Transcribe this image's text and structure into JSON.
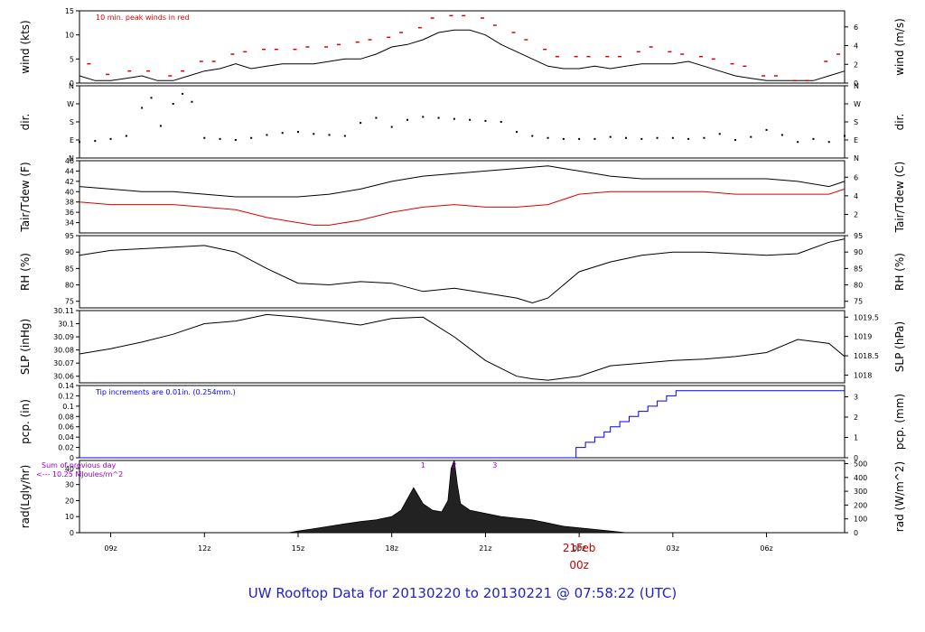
{
  "figure": {
    "title": "UW Rooftop Data for 20130220  to  20130221 @ 07:58:22  (UTC)",
    "colors": {
      "black": "#000000",
      "red": "#dd0000",
      "blue": "#0000ff",
      "purple": "#9900cc",
      "title": "#2222cc"
    }
  },
  "x_axis": {
    "tick_labels": [
      "09z",
      "12z",
      "15z",
      "18z",
      "21z",
      "00z",
      "03z",
      "06z"
    ],
    "tick_hours": [
      1.0,
      4.0,
      7.0,
      10.0,
      13.0,
      16.0,
      19.0,
      22.0
    ],
    "date_label": "21Feb",
    "date_label_time": "00z",
    "xlim_hours": [
      0,
      24.5
    ]
  },
  "chart_data": [
    {
      "type": "line",
      "id": "wind",
      "ylabel": "wind (kts)",
      "ylabel_right": "wind (m/s)",
      "ylim": [
        0,
        15
      ],
      "yticks": [
        0,
        5,
        10,
        15
      ],
      "right_ylim": [
        0,
        7.72
      ],
      "right_yticks": [
        0,
        2,
        4,
        6
      ],
      "annotation": "10 min. peak winds in red",
      "series": [
        {
          "role": "wind",
          "x": [
            0.0,
            0.5,
            1.0,
            1.5,
            2.0,
            2.5,
            3.0,
            3.5,
            4.0,
            4.5,
            5.0,
            5.5,
            6.0,
            6.5,
            7.0,
            7.5,
            8.0,
            8.5,
            9.0,
            9.5,
            10.0,
            10.5,
            11.0,
            11.5,
            12.0,
            12.5,
            13.0,
            13.5,
            14.0,
            14.5,
            15.0,
            15.5,
            16.0,
            16.5,
            17.0,
            17.5,
            18.0,
            18.5,
            19.0,
            19.5,
            20.0,
            20.5,
            21.0,
            21.5,
            22.0,
            22.5,
            23.0,
            23.5,
            24.0,
            24.5
          ],
          "values": [
            1.5,
            0.5,
            0.5,
            1.0,
            1.5,
            0.5,
            0.5,
            1.5,
            2.5,
            3.0,
            4.0,
            3.0,
            3.5,
            4.0,
            4.0,
            4.0,
            4.5,
            5.0,
            5.0,
            6.0,
            7.5,
            8.0,
            9.0,
            10.5,
            11.0,
            11.0,
            10.0,
            8.0,
            6.5,
            5.0,
            3.5,
            3.0,
            3.0,
            3.5,
            3.0,
            3.5,
            4.0,
            4.0,
            4.0,
            4.5,
            3.5,
            2.5,
            1.5,
            1.0,
            0.5,
            0.5,
            0.5,
            0.5,
            1.5,
            2.5
          ]
        },
        {
          "role": "peak",
          "x": [
            0.3,
            0.9,
            1.6,
            2.2,
            2.9,
            3.3,
            3.9,
            4.3,
            4.9,
            5.3,
            5.9,
            6.3,
            6.9,
            7.3,
            7.9,
            8.3,
            8.9,
            9.3,
            9.9,
            10.3,
            10.9,
            11.3,
            11.9,
            12.3,
            12.9,
            13.3,
            13.9,
            14.3,
            14.9,
            15.3,
            15.9,
            16.3,
            16.9,
            17.3,
            17.9,
            18.3,
            18.9,
            19.3,
            19.9,
            20.3,
            20.9,
            21.3,
            21.9,
            22.3,
            22.9,
            23.3,
            23.9,
            24.3
          ],
          "values": [
            4.0,
            1.8,
            2.5,
            2.5,
            1.5,
            2.5,
            4.5,
            4.5,
            6.0,
            6.5,
            7.0,
            7.0,
            7.0,
            7.5,
            7.5,
            8.0,
            8.5,
            9.0,
            9.5,
            10.5,
            11.5,
            13.5,
            14.0,
            14.0,
            13.5,
            12.0,
            10.5,
            9.0,
            7.0,
            5.5,
            5.5,
            5.5,
            5.5,
            5.5,
            6.5,
            7.5,
            6.5,
            6.0,
            5.5,
            5.0,
            4.0,
            3.5,
            1.5,
            1.5,
            0.5,
            0.5,
            4.5,
            6.0
          ]
        }
      ]
    },
    {
      "type": "scatter",
      "id": "dir",
      "ylabel": "dir.",
      "ylabel_right": "dir.",
      "ylim": [
        0,
        360
      ],
      "ytick_labels": [
        "N",
        "E",
        "S",
        "W",
        "N"
      ],
      "ytick_values": [
        0,
        90,
        180,
        270,
        360
      ],
      "series": [
        {
          "role": "direction",
          "x": [
            0.0,
            0.5,
            1.0,
            1.5,
            2.0,
            2.3,
            2.6,
            3.0,
            3.3,
            3.6,
            4.0,
            4.5,
            5.0,
            5.5,
            6.0,
            6.5,
            7.0,
            7.5,
            8.0,
            8.5,
            9.0,
            9.5,
            10.0,
            10.5,
            11.0,
            11.5,
            12.0,
            12.5,
            13.0,
            13.5,
            14.0,
            14.5,
            15.0,
            15.5,
            16.0,
            16.5,
            17.0,
            17.5,
            18.0,
            18.5,
            19.0,
            19.5,
            20.0,
            20.5,
            21.0,
            21.5,
            22.0,
            22.5,
            23.0,
            23.5,
            24.0,
            24.5
          ],
          "values": [
            80,
            85,
            95,
            110,
            250,
            300,
            160,
            270,
            320,
            280,
            100,
            95,
            90,
            100,
            115,
            125,
            130,
            120,
            115,
            110,
            175,
            200,
            155,
            190,
            205,
            200,
            195,
            190,
            185,
            180,
            130,
            110,
            100,
            95,
            95,
            95,
            105,
            100,
            95,
            100,
            100,
            95,
            100,
            120,
            90,
            105,
            140,
            115,
            80,
            95,
            80,
            110
          ]
        }
      ]
    },
    {
      "type": "line",
      "id": "temp",
      "ylabel": "Tair/Tdew (F)",
      "ylabel_right": "Tair/Tdew (C)",
      "ylim": [
        32,
        46
      ],
      "yticks": [
        34,
        36,
        38,
        40,
        42,
        44,
        46
      ],
      "right_ylim": [
        0,
        7.78
      ],
      "right_yticks": [
        2,
        4,
        6
      ],
      "series": [
        {
          "role": "tair",
          "x": [
            0.0,
            1.0,
            2.0,
            3.0,
            4.0,
            5.0,
            6.0,
            7.0,
            8.0,
            9.0,
            10.0,
            11.0,
            12.0,
            13.0,
            14.0,
            15.0,
            15.5,
            16.0,
            17.0,
            18.0,
            19.0,
            20.0,
            21.0,
            22.0,
            23.0,
            24.0,
            24.5
          ],
          "values": [
            41.0,
            40.5,
            40.0,
            40.0,
            39.5,
            39.0,
            39.0,
            39.0,
            39.5,
            40.5,
            42.0,
            43.0,
            43.5,
            44.0,
            44.5,
            45.0,
            44.5,
            44.0,
            43.0,
            42.5,
            42.5,
            42.5,
            42.5,
            42.5,
            42.0,
            41.0,
            42.0
          ]
        },
        {
          "role": "tdew",
          "x": [
            0.0,
            1.0,
            2.0,
            3.0,
            4.0,
            5.0,
            6.0,
            7.0,
            7.5,
            8.0,
            9.0,
            10.0,
            11.0,
            12.0,
            13.0,
            14.0,
            15.0,
            16.0,
            17.0,
            18.0,
            19.0,
            20.0,
            21.0,
            22.0,
            23.0,
            24.0,
            24.5
          ],
          "values": [
            38.0,
            37.5,
            37.5,
            37.5,
            37.0,
            36.5,
            35.0,
            34.0,
            33.5,
            33.5,
            34.5,
            36.0,
            37.0,
            37.5,
            37.0,
            37.0,
            37.5,
            39.5,
            40.0,
            40.0,
            40.0,
            40.0,
            39.5,
            39.5,
            39.5,
            39.5,
            40.5
          ]
        }
      ]
    },
    {
      "type": "line",
      "id": "rh",
      "ylabel": "RH (%)",
      "ylabel_right": "RH (%)",
      "ylim": [
        73,
        95
      ],
      "yticks": [
        75,
        80,
        85,
        90,
        95
      ],
      "right_ylim": [
        73,
        95
      ],
      "right_yticks": [
        75,
        80,
        85,
        90,
        95
      ],
      "series": [
        {
          "role": "rh",
          "x": [
            0.0,
            1.0,
            2.0,
            3.0,
            4.0,
            5.0,
            6.0,
            7.0,
            8.0,
            9.0,
            10.0,
            11.0,
            12.0,
            13.0,
            14.0,
            14.5,
            15.0,
            15.5,
            16.0,
            17.0,
            18.0,
            19.0,
            20.0,
            21.0,
            22.0,
            23.0,
            24.0,
            24.5
          ],
          "values": [
            89.0,
            90.5,
            91.0,
            91.5,
            92.0,
            90.0,
            85.0,
            80.5,
            80.0,
            81.0,
            80.5,
            78.0,
            79.0,
            77.5,
            76.0,
            74.5,
            76.0,
            80.0,
            84.0,
            87.0,
            89.0,
            90.0,
            90.0,
            89.5,
            89.0,
            89.5,
            93.0,
            94.0
          ]
        }
      ]
    },
    {
      "type": "line",
      "id": "slp",
      "ylabel": "SLP (inHg)",
      "ylabel_right": "SLP (hPa)",
      "ylim": [
        30.055,
        30.11
      ],
      "yticks": [
        30.06,
        30.07,
        30.08,
        30.09,
        30.1,
        30.11
      ],
      "right_ylim": [
        1017.8,
        1019.67
      ],
      "right_yticks": [
        1018,
        1018.5,
        1019,
        1019.5
      ],
      "series": [
        {
          "role": "slp",
          "x": [
            0.0,
            1.0,
            2.0,
            3.0,
            4.0,
            5.0,
            6.0,
            7.0,
            8.0,
            9.0,
            10.0,
            11.0,
            12.0,
            13.0,
            14.0,
            14.5,
            15.0,
            16.0,
            17.0,
            18.0,
            19.0,
            20.0,
            21.0,
            22.0,
            23.0,
            24.0,
            24.5
          ],
          "values": [
            30.077,
            30.081,
            30.086,
            30.092,
            30.1,
            30.102,
            30.107,
            30.105,
            30.102,
            30.099,
            30.104,
            30.105,
            30.09,
            30.072,
            30.06,
            30.058,
            30.057,
            30.06,
            30.068,
            30.07,
            30.072,
            30.073,
            30.075,
            30.078,
            30.088,
            30.085,
            30.075
          ]
        }
      ]
    },
    {
      "type": "line",
      "id": "pcp",
      "ylabel": "pcp. (in)",
      "ylabel_right": "pcp. (mm)",
      "ylim": [
        0,
        0.14
      ],
      "yticks": [
        0.0,
        0.02,
        0.04,
        0.06,
        0.08,
        0.1,
        0.12,
        0.14
      ],
      "right_ylim": [
        0,
        3.556
      ],
      "right_yticks": [
        0,
        1,
        2,
        3
      ],
      "annotation": "Tip increments are 0.01in. (0.254mm.)",
      "series": [
        {
          "role": "precip",
          "x": [
            0.0,
            15.6,
            15.9,
            16.2,
            16.5,
            16.8,
            17.0,
            17.3,
            17.6,
            17.9,
            18.2,
            18.5,
            18.8,
            19.1,
            24.5
          ],
          "values": [
            0.0,
            0.0,
            0.02,
            0.03,
            0.04,
            0.05,
            0.06,
            0.07,
            0.08,
            0.09,
            0.1,
            0.11,
            0.12,
            0.13,
            0.13
          ]
        }
      ]
    },
    {
      "type": "area",
      "id": "rad",
      "ylabel": "rad(Lgly/hr)",
      "ylabel_right": "rad (W/m^2)",
      "ylim": [
        0,
        45
      ],
      "yticks": [
        0,
        10,
        20,
        30,
        40
      ],
      "right_ylim": [
        0,
        523
      ],
      "right_yticks": [
        0,
        100,
        200,
        300,
        400,
        500
      ],
      "annotation_lines": [
        "Sum of previous day",
        "<--- 10.25 MJoules/m^2"
      ],
      "markers": [
        "1",
        "2",
        "3"
      ],
      "marker_hours": [
        11.0,
        12.0,
        13.3
      ],
      "series": [
        {
          "role": "radiation",
          "x": [
            6.7,
            7.0,
            7.5,
            8.0,
            8.5,
            9.0,
            9.5,
            10.0,
            10.3,
            10.7,
            11.0,
            11.3,
            11.6,
            11.8,
            11.9,
            12.0,
            12.1,
            12.2,
            12.5,
            13.0,
            13.5,
            14.0,
            14.5,
            15.0,
            15.5,
            16.0,
            16.5,
            17.0,
            17.5
          ],
          "values": [
            0.0,
            1.0,
            2.5,
            4.0,
            5.5,
            7.0,
            8.0,
            10.0,
            14.0,
            28.0,
            18.0,
            14.0,
            13.0,
            20.0,
            40.0,
            45.0,
            30.0,
            18.0,
            14.0,
            12.0,
            10.0,
            9.0,
            8.0,
            6.0,
            4.0,
            3.0,
            2.0,
            1.0,
            0.0
          ]
        }
      ]
    }
  ]
}
